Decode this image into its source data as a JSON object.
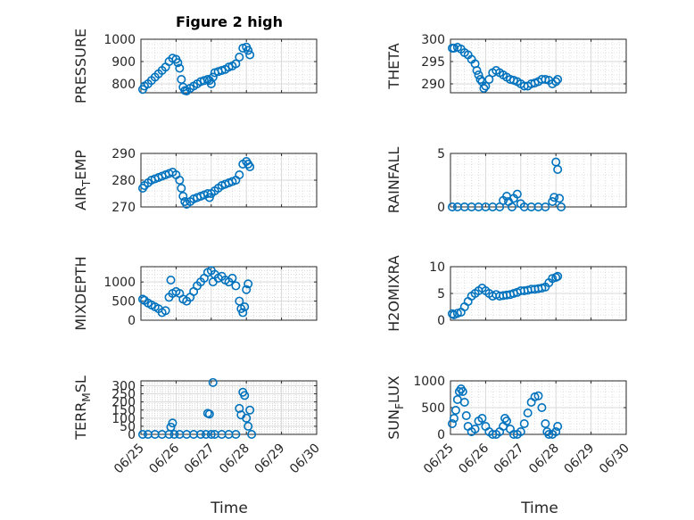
{
  "figure_title": "Figure 2 high",
  "x_label": "Time",
  "x_ticks": [
    "06/25",
    "06/26",
    "06/27",
    "06/28",
    "06/29",
    "06/30"
  ],
  "marker_color": "#0072BD",
  "chart_data": [
    {
      "type": "scatter",
      "ylabel": "PRESSURE",
      "ylim": [
        760,
        1000
      ],
      "yticks": [
        800,
        900,
        1000
      ],
      "points": [
        [
          0.05,
          775
        ],
        [
          0.1,
          790
        ],
        [
          0.2,
          800
        ],
        [
          0.3,
          815
        ],
        [
          0.4,
          830
        ],
        [
          0.5,
          845
        ],
        [
          0.6,
          860
        ],
        [
          0.7,
          875
        ],
        [
          0.8,
          900
        ],
        [
          0.9,
          915
        ],
        [
          1.0,
          910
        ],
        [
          1.05,
          895
        ],
        [
          1.1,
          870
        ],
        [
          1.15,
          820
        ],
        [
          1.2,
          785
        ],
        [
          1.25,
          770
        ],
        [
          1.3,
          768
        ],
        [
          1.4,
          780
        ],
        [
          1.5,
          790
        ],
        [
          1.6,
          800
        ],
        [
          1.7,
          810
        ],
        [
          1.8,
          815
        ],
        [
          1.9,
          820
        ],
        [
          1.95,
          815
        ],
        [
          2.0,
          800
        ],
        [
          2.05,
          830
        ],
        [
          2.1,
          850
        ],
        [
          2.2,
          855
        ],
        [
          2.3,
          860
        ],
        [
          2.4,
          865
        ],
        [
          2.5,
          875
        ],
        [
          2.6,
          880
        ],
        [
          2.7,
          890
        ],
        [
          2.8,
          920
        ],
        [
          2.9,
          960
        ],
        [
          3.0,
          965
        ],
        [
          3.05,
          950
        ],
        [
          3.1,
          930
        ]
      ]
    },
    {
      "type": "scatter",
      "ylabel": "THETA",
      "ylim": [
        288,
        300
      ],
      "yticks": [
        290,
        295,
        300
      ],
      "points": [
        [
          0.05,
          298
        ],
        [
          0.1,
          298
        ],
        [
          0.2,
          298.2
        ],
        [
          0.3,
          297.8
        ],
        [
          0.4,
          297
        ],
        [
          0.5,
          296.5
        ],
        [
          0.6,
          295.5
        ],
        [
          0.7,
          294.5
        ],
        [
          0.75,
          293
        ],
        [
          0.8,
          292
        ],
        [
          0.85,
          291
        ],
        [
          0.9,
          290.5
        ],
        [
          0.95,
          289
        ],
        [
          1.0,
          289.5
        ],
        [
          1.1,
          291
        ],
        [
          1.2,
          292.5
        ],
        [
          1.3,
          293
        ],
        [
          1.4,
          292.5
        ],
        [
          1.5,
          292
        ],
        [
          1.6,
          291.5
        ],
        [
          1.7,
          291
        ],
        [
          1.8,
          290.8
        ],
        [
          1.9,
          290.5
        ],
        [
          2.0,
          290
        ],
        [
          2.1,
          289.5
        ],
        [
          2.2,
          289.5
        ],
        [
          2.3,
          290
        ],
        [
          2.4,
          290.2
        ],
        [
          2.5,
          290.5
        ],
        [
          2.6,
          291
        ],
        [
          2.7,
          291
        ],
        [
          2.8,
          290.8
        ],
        [
          2.9,
          290
        ],
        [
          3.0,
          290.5
        ],
        [
          3.05,
          291
        ]
      ]
    },
    {
      "type": "scatter",
      "ylabel": "AIR_TEMP",
      "ylim": [
        270,
        290
      ],
      "yticks": [
        270,
        280,
        290
      ],
      "points": [
        [
          0.05,
          277
        ],
        [
          0.1,
          278
        ],
        [
          0.2,
          279
        ],
        [
          0.3,
          280
        ],
        [
          0.4,
          280.5
        ],
        [
          0.5,
          281
        ],
        [
          0.6,
          281.5
        ],
        [
          0.7,
          282
        ],
        [
          0.8,
          282.5
        ],
        [
          0.9,
          283
        ],
        [
          1.0,
          282
        ],
        [
          1.1,
          280
        ],
        [
          1.15,
          277
        ],
        [
          1.2,
          274
        ],
        [
          1.25,
          272
        ],
        [
          1.3,
          271
        ],
        [
          1.4,
          272
        ],
        [
          1.5,
          273
        ],
        [
          1.6,
          273.5
        ],
        [
          1.7,
          274
        ],
        [
          1.8,
          274.5
        ],
        [
          1.9,
          275
        ],
        [
          1.95,
          273.5
        ],
        [
          2.0,
          275
        ],
        [
          2.1,
          276
        ],
        [
          2.2,
          277
        ],
        [
          2.3,
          278
        ],
        [
          2.4,
          278.5
        ],
        [
          2.5,
          279
        ],
        [
          2.6,
          279.5
        ],
        [
          2.7,
          280
        ],
        [
          2.8,
          282
        ],
        [
          2.9,
          286
        ],
        [
          3.0,
          287
        ],
        [
          3.05,
          286
        ],
        [
          3.1,
          285
        ]
      ]
    },
    {
      "type": "scatter",
      "ylabel": "RAINFALL",
      "ylim": [
        0,
        5
      ],
      "yticks": [
        0,
        5
      ],
      "points": [
        [
          0.05,
          0
        ],
        [
          0.2,
          0
        ],
        [
          0.4,
          0
        ],
        [
          0.6,
          0
        ],
        [
          0.8,
          0
        ],
        [
          1.0,
          0
        ],
        [
          1.2,
          0
        ],
        [
          1.4,
          0
        ],
        [
          1.5,
          0.6
        ],
        [
          1.6,
          1
        ],
        [
          1.65,
          0.5
        ],
        [
          1.75,
          0
        ],
        [
          1.8,
          0.8
        ],
        [
          1.9,
          1.2
        ],
        [
          2.0,
          0.3
        ],
        [
          2.1,
          0
        ],
        [
          2.3,
          0
        ],
        [
          2.5,
          0
        ],
        [
          2.7,
          0
        ],
        [
          2.9,
          0.5
        ],
        [
          2.95,
          0.9
        ],
        [
          3.0,
          4.2
        ],
        [
          3.05,
          3.5
        ],
        [
          3.1,
          0.8
        ],
        [
          3.15,
          0
        ]
      ]
    },
    {
      "type": "scatter",
      "ylabel": "MIXDEPTH",
      "ylim": [
        0,
        1400
      ],
      "yticks": [
        0,
        500,
        1000
      ],
      "points": [
        [
          0.05,
          550
        ],
        [
          0.1,
          520
        ],
        [
          0.2,
          450
        ],
        [
          0.3,
          400
        ],
        [
          0.4,
          350
        ],
        [
          0.5,
          300
        ],
        [
          0.6,
          200
        ],
        [
          0.7,
          250
        ],
        [
          0.8,
          600
        ],
        [
          0.85,
          1050
        ],
        [
          0.9,
          700
        ],
        [
          1.0,
          750
        ],
        [
          1.1,
          700
        ],
        [
          1.2,
          550
        ],
        [
          1.3,
          500
        ],
        [
          1.4,
          600
        ],
        [
          1.5,
          750
        ],
        [
          1.6,
          900
        ],
        [
          1.7,
          1000
        ],
        [
          1.8,
          1100
        ],
        [
          1.9,
          1250
        ],
        [
          2.0,
          1300
        ],
        [
          2.05,
          1000
        ],
        [
          2.1,
          1200
        ],
        [
          2.2,
          1100
        ],
        [
          2.3,
          1150
        ],
        [
          2.4,
          1050
        ],
        [
          2.5,
          1000
        ],
        [
          2.6,
          1100
        ],
        [
          2.7,
          900
        ],
        [
          2.8,
          500
        ],
        [
          2.85,
          300
        ],
        [
          2.9,
          200
        ],
        [
          2.95,
          350
        ],
        [
          3.0,
          800
        ],
        [
          3.05,
          950
        ]
      ]
    },
    {
      "type": "scatter",
      "ylabel": "H2OMIXRA",
      "ylim": [
        0,
        10
      ],
      "yticks": [
        0,
        5,
        10
      ],
      "points": [
        [
          0.05,
          1.2
        ],
        [
          0.1,
          1
        ],
        [
          0.2,
          1.3
        ],
        [
          0.3,
          1.5
        ],
        [
          0.4,
          2.5
        ],
        [
          0.5,
          3.5
        ],
        [
          0.6,
          4.5
        ],
        [
          0.7,
          5
        ],
        [
          0.8,
          5.5
        ],
        [
          0.9,
          6
        ],
        [
          1.0,
          5.5
        ],
        [
          1.1,
          5
        ],
        [
          1.2,
          4.5
        ],
        [
          1.3,
          4.8
        ],
        [
          1.4,
          4.5
        ],
        [
          1.5,
          4.6
        ],
        [
          1.6,
          4.7
        ],
        [
          1.7,
          4.8
        ],
        [
          1.8,
          5
        ],
        [
          1.9,
          5.2
        ],
        [
          2.0,
          5.5
        ],
        [
          2.1,
          5.5
        ],
        [
          2.2,
          5.6
        ],
        [
          2.3,
          5.8
        ],
        [
          2.4,
          5.8
        ],
        [
          2.5,
          5.9
        ],
        [
          2.6,
          6
        ],
        [
          2.7,
          6.2
        ],
        [
          2.8,
          7
        ],
        [
          2.9,
          7.8
        ],
        [
          3.0,
          8
        ],
        [
          3.05,
          8.2
        ]
      ]
    },
    {
      "type": "scatter",
      "ylabel": "TERR_MSL",
      "ylim": [
        0,
        330
      ],
      "yticks": [
        0,
        50,
        100,
        150,
        200,
        250,
        300
      ],
      "points": [
        [
          0.05,
          0
        ],
        [
          0.2,
          0
        ],
        [
          0.4,
          0
        ],
        [
          0.6,
          0
        ],
        [
          0.8,
          0
        ],
        [
          0.85,
          45
        ],
        [
          0.9,
          70
        ],
        [
          0.95,
          0
        ],
        [
          1.1,
          0
        ],
        [
          1.3,
          0
        ],
        [
          1.5,
          0
        ],
        [
          1.7,
          0
        ],
        [
          1.85,
          0
        ],
        [
          1.9,
          130
        ],
        [
          1.95,
          125
        ],
        [
          2.0,
          0
        ],
        [
          2.05,
          320
        ],
        [
          2.1,
          0
        ],
        [
          2.3,
          0
        ],
        [
          2.5,
          0
        ],
        [
          2.7,
          0
        ],
        [
          2.8,
          160
        ],
        [
          2.85,
          120
        ],
        [
          2.9,
          260
        ],
        [
          2.95,
          240
        ],
        [
          3.0,
          100
        ],
        [
          3.05,
          50
        ],
        [
          3.1,
          150
        ],
        [
          3.15,
          0
        ]
      ]
    },
    {
      "type": "scatter",
      "ylabel": "SUN_FLUX",
      "ylim": [
        0,
        1000
      ],
      "yticks": [
        0,
        500,
        1000
      ],
      "points": [
        [
          0.05,
          200
        ],
        [
          0.1,
          300
        ],
        [
          0.15,
          450
        ],
        [
          0.2,
          650
        ],
        [
          0.25,
          800
        ],
        [
          0.3,
          850
        ],
        [
          0.35,
          800
        ],
        [
          0.4,
          600
        ],
        [
          0.45,
          350
        ],
        [
          0.5,
          150
        ],
        [
          0.6,
          50
        ],
        [
          0.7,
          100
        ],
        [
          0.8,
          250
        ],
        [
          0.9,
          300
        ],
        [
          1.0,
          150
        ],
        [
          1.1,
          50
        ],
        [
          1.2,
          0
        ],
        [
          1.3,
          0
        ],
        [
          1.4,
          50
        ],
        [
          1.5,
          150
        ],
        [
          1.55,
          300
        ],
        [
          1.6,
          250
        ],
        [
          1.7,
          100
        ],
        [
          1.8,
          0
        ],
        [
          1.9,
          0
        ],
        [
          2.0,
          50
        ],
        [
          2.1,
          200
        ],
        [
          2.2,
          400
        ],
        [
          2.3,
          600
        ],
        [
          2.4,
          700
        ],
        [
          2.5,
          720
        ],
        [
          2.6,
          500
        ],
        [
          2.7,
          200
        ],
        [
          2.75,
          50
        ],
        [
          2.8,
          0
        ],
        [
          2.9,
          0
        ],
        [
          3.0,
          50
        ],
        [
          3.05,
          150
        ]
      ]
    }
  ]
}
